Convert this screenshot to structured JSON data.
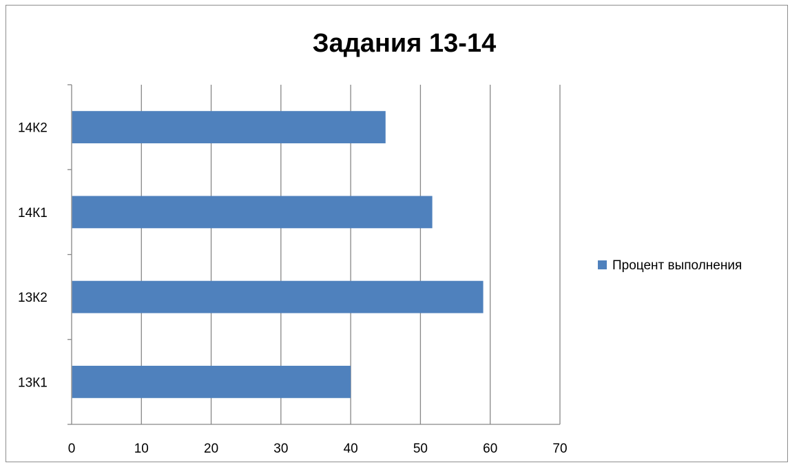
{
  "chart_data": {
    "type": "bar",
    "orientation": "horizontal",
    "title": "Задания 13-14",
    "xlabel": "",
    "ylabel": "",
    "categories": [
      "13К1",
      "13К2",
      "14К1",
      "14К2"
    ],
    "series": [
      {
        "name": "Процент выполнения",
        "values": [
          40,
          59,
          51.7,
          45
        ],
        "color": "#4f81bd"
      }
    ],
    "xlim": [
      0,
      70
    ],
    "x_ticks": [
      0,
      10,
      20,
      30,
      40,
      50,
      60,
      70
    ],
    "grid": true,
    "legend_position": "right"
  }
}
